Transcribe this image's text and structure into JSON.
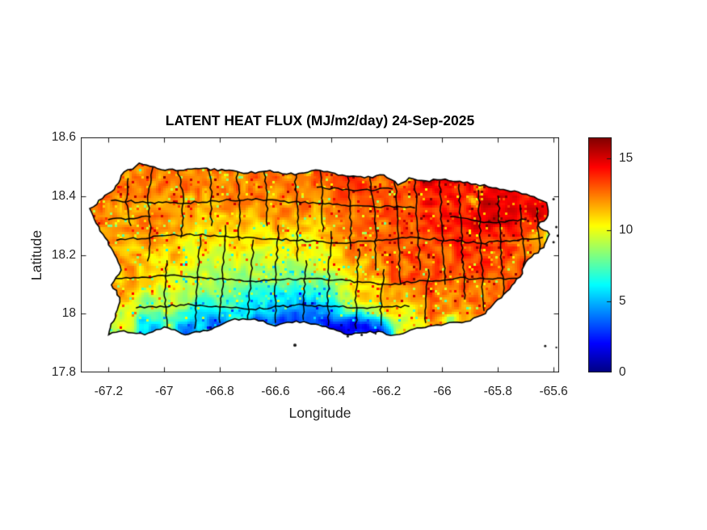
{
  "title": "LATENT HEAT FLUX (MJ/m2/day) 24-Sep-2025",
  "axes": {
    "xlabel": "Longitude",
    "ylabel": "Latitude",
    "xlim": [
      -67.3,
      -65.58
    ],
    "ylim": [
      17.8,
      18.6
    ],
    "xticks": [
      -67.2,
      -67,
      -66.8,
      -66.6,
      -66.4,
      -66.2,
      -66,
      -65.8,
      -65.6
    ],
    "xtick_labels": [
      "-67.2",
      "-67",
      "-66.8",
      "-66.6",
      "-66.4",
      "-66.2",
      "-66",
      "-65.8",
      "-65.6"
    ],
    "yticks": [
      17.8,
      18,
      18.2,
      18.4,
      18.6
    ],
    "ytick_labels": [
      "17.8",
      "18",
      "18.2",
      "18.4",
      "18.6"
    ],
    "axis_color": "#1a1a1a",
    "tick_label_color": "#262626"
  },
  "colorbar": {
    "min": 0,
    "max": 16.5,
    "ticks": [
      0,
      5,
      10,
      15
    ],
    "tick_labels": [
      "0",
      "5",
      "10",
      "15"
    ],
    "colormap": "jet"
  },
  "chart_data": {
    "type": "heatmap",
    "title": "LATENT HEAT FLUX (MJ/m2/day) 24-Sep-2025",
    "variable": "Latent Heat Flux",
    "units": "MJ/m2/day",
    "date": "24-Sep-2025",
    "region": "Puerto Rico",
    "xlabel": "Longitude",
    "ylabel": "Latitude",
    "xlim": [
      -67.3,
      -65.58
    ],
    "ylim": [
      17.8,
      18.6
    ],
    "clim": [
      0,
      16.5
    ],
    "colormap": "jet",
    "legend": "none",
    "grid": false,
    "samples_format": [
      "lon",
      "lat",
      "value_MJ_m2_day",
      "sigma_deg_optional"
    ],
    "samples": [
      [
        -67.13,
        18.43,
        12.0
      ],
      [
        -66.97,
        18.44,
        12.6
      ],
      [
        -66.8,
        18.44,
        12.2
      ],
      [
        -66.63,
        18.43,
        12.6
      ],
      [
        -66.47,
        18.43,
        12.4
      ],
      [
        -66.33,
        18.43,
        13.4
      ],
      [
        -66.18,
        18.42,
        13.0
      ],
      [
        -66.05,
        18.42,
        14.8,
        0.05
      ],
      [
        -65.93,
        18.41,
        14.4
      ],
      [
        -65.8,
        18.4,
        14.8
      ],
      [
        -65.68,
        18.37,
        14.0
      ],
      [
        -65.75,
        18.37,
        15.9,
        0.04
      ],
      [
        -65.72,
        18.34,
        15.2,
        0.06
      ],
      [
        -65.85,
        18.3,
        14.6
      ],
      [
        -66.0,
        18.32,
        14.0
      ],
      [
        -66.13,
        18.3,
        13.2
      ],
      [
        -67.07,
        18.33,
        11.8
      ],
      [
        -66.9,
        18.34,
        11.6
      ],
      [
        -66.73,
        18.33,
        11.4
      ],
      [
        -66.57,
        18.34,
        11.6
      ],
      [
        -66.42,
        18.33,
        11.8
      ],
      [
        -66.28,
        18.31,
        12.4
      ],
      [
        -67.22,
        18.34,
        12.4,
        0.06
      ],
      [
        -67.18,
        18.22,
        12.0,
        0.06
      ],
      [
        -67.18,
        18.08,
        11.6,
        0.06
      ],
      [
        -67.16,
        17.97,
        9.5,
        0.05
      ],
      [
        -67.0,
        18.2,
        11.2
      ],
      [
        -66.85,
        18.2,
        10.2
      ],
      [
        -66.68,
        18.18,
        10.0
      ],
      [
        -66.52,
        18.2,
        10.2
      ],
      [
        -66.44,
        18.24,
        9.8,
        0.05
      ],
      [
        -66.3,
        18.2,
        12.2
      ],
      [
        -66.17,
        18.2,
        12.8
      ],
      [
        -66.03,
        18.17,
        13.2
      ],
      [
        -65.88,
        18.17,
        13.4
      ],
      [
        -65.74,
        18.2,
        13.0
      ],
      [
        -65.66,
        18.26,
        11.0,
        0.04
      ],
      [
        -66.92,
        18.08,
        9.2
      ],
      [
        -66.75,
        18.07,
        8.0
      ],
      [
        -66.58,
        18.08,
        7.2
      ],
      [
        -66.44,
        18.07,
        7.5
      ],
      [
        -66.32,
        18.09,
        10.0
      ],
      [
        -67.0,
        18.0,
        8.5,
        0.06
      ],
      [
        -66.85,
        18.01,
        4.8,
        0.05
      ],
      [
        -66.7,
        18.02,
        5.2,
        0.05
      ],
      [
        -66.6,
        18.04,
        4.0,
        0.04
      ],
      [
        -66.55,
        18.01,
        3.5,
        0.05
      ],
      [
        -66.5,
        18.035,
        3.0,
        0.04
      ],
      [
        -66.42,
        18.0,
        3.0,
        0.05
      ],
      [
        -66.3,
        18.03,
        10.5,
        0.05
      ],
      [
        -66.2,
        18.03,
        11.5,
        0.05
      ],
      [
        -67.05,
        17.955,
        4.5,
        0.04
      ],
      [
        -66.92,
        17.95,
        3.2,
        0.04
      ],
      [
        -66.8,
        17.96,
        2.2,
        0.04
      ],
      [
        -66.66,
        17.965,
        2.0,
        0.04
      ],
      [
        -66.55,
        17.97,
        1.2,
        0.045
      ],
      [
        -66.44,
        17.96,
        1.5,
        0.045
      ],
      [
        -66.34,
        17.95,
        0.8,
        0.05
      ],
      [
        -66.3,
        17.97,
        1.0,
        0.04
      ],
      [
        -66.24,
        17.96,
        2.0,
        0.04
      ],
      [
        -66.08,
        18.08,
        12.6
      ],
      [
        -65.93,
        18.06,
        12.8
      ],
      [
        -65.82,
        18.04,
        12.4
      ],
      [
        -65.98,
        17.99,
        11.0,
        0.05
      ],
      [
        -65.88,
        17.99,
        11.8,
        0.05
      ],
      [
        -66.12,
        17.99,
        9.0,
        0.04
      ],
      [
        -65.97,
        17.985,
        3.5,
        0.015
      ],
      [
        -65.89,
        18.385,
        4.5,
        0.018
      ],
      [
        -66.48,
        18.487,
        4.5,
        0.013
      ],
      [
        -66.12,
        18.468,
        5.0,
        0.012
      ],
      [
        -65.87,
        18.435,
        5.5,
        0.013
      ],
      [
        -65.61,
        18.26,
        5.0,
        0.014
      ],
      [
        -66.05,
        18.43,
        15.9,
        0.03
      ],
      [
        -66.45,
        18.47,
        13.6,
        0.04
      ]
    ],
    "island_outline": [
      [
        -67.155,
        18.47
      ],
      [
        -67.09,
        18.512
      ],
      [
        -67.01,
        18.49
      ],
      [
        -66.93,
        18.488
      ],
      [
        -66.86,
        18.495
      ],
      [
        -66.78,
        18.487
      ],
      [
        -66.7,
        18.478
      ],
      [
        -66.62,
        18.488
      ],
      [
        -66.53,
        18.472
      ],
      [
        -66.44,
        18.488
      ],
      [
        -66.36,
        18.472
      ],
      [
        -66.28,
        18.462
      ],
      [
        -66.21,
        18.472
      ],
      [
        -66.16,
        18.438
      ],
      [
        -66.12,
        18.462
      ],
      [
        -66.06,
        18.452
      ],
      [
        -65.99,
        18.458
      ],
      [
        -65.91,
        18.448
      ],
      [
        -65.82,
        18.428
      ],
      [
        -65.74,
        18.418
      ],
      [
        -65.67,
        18.398
      ],
      [
        -65.625,
        18.378
      ],
      [
        -65.62,
        18.335
      ],
      [
        -65.655,
        18.3
      ],
      [
        -65.615,
        18.27
      ],
      [
        -65.635,
        18.225
      ],
      [
        -65.7,
        18.175
      ],
      [
        -65.72,
        18.125
      ],
      [
        -65.78,
        18.065
      ],
      [
        -65.845,
        18.0
      ],
      [
        -65.9,
        17.975
      ],
      [
        -65.99,
        17.965
      ],
      [
        -66.09,
        17.952
      ],
      [
        -66.17,
        17.928
      ],
      [
        -66.26,
        17.94
      ],
      [
        -66.34,
        17.928
      ],
      [
        -66.445,
        17.962
      ],
      [
        -66.525,
        17.975
      ],
      [
        -66.6,
        17.958
      ],
      [
        -66.675,
        17.982
      ],
      [
        -66.76,
        17.978
      ],
      [
        -66.845,
        17.942
      ],
      [
        -66.925,
        17.928
      ],
      [
        -67.0,
        17.955
      ],
      [
        -67.07,
        17.928
      ],
      [
        -67.145,
        17.942
      ],
      [
        -67.2,
        17.928
      ],
      [
        -67.175,
        18.0
      ],
      [
        -67.16,
        18.055
      ],
      [
        -67.19,
        18.098
      ],
      [
        -67.155,
        18.148
      ],
      [
        -67.178,
        18.2
      ],
      [
        -67.212,
        18.258
      ],
      [
        -67.245,
        18.308
      ],
      [
        -67.268,
        18.358
      ],
      [
        -67.222,
        18.392
      ],
      [
        -67.18,
        18.422
      ]
    ],
    "islets": [
      [
        -65.6,
        18.39,
        1.5
      ],
      [
        -65.575,
        18.365,
        2.0
      ],
      [
        -65.57,
        18.33,
        1.5
      ],
      [
        -65.59,
        18.295,
        1.5
      ],
      [
        -65.585,
        18.265,
        1.5
      ],
      [
        -65.6,
        18.243,
        1.5
      ],
      [
        -66.53,
        17.893,
        2.0
      ],
      [
        -66.34,
        17.923,
        1.5
      ],
      [
        -66.29,
        17.928,
        1.5
      ],
      [
        -66.24,
        17.932,
        1.2
      ],
      [
        -65.63,
        17.89,
        1.5
      ],
      [
        -65.59,
        17.885,
        1.2
      ]
    ],
    "municipal_boundaries": [
      [
        [
          -67.13,
          18.46
        ],
        [
          -67.14,
          18.38
        ],
        [
          -67.12,
          18.3
        ]
      ],
      [
        [
          -67.04,
          18.5
        ],
        [
          -67.06,
          18.4
        ],
        [
          -67.05,
          18.28
        ],
        [
          -67.06,
          18.18
        ]
      ],
      [
        [
          -66.99,
          18.18
        ],
        [
          -67.0,
          18.06
        ],
        [
          -66.99,
          17.94
        ]
      ],
      [
        [
          -66.95,
          18.49
        ],
        [
          -66.93,
          18.38
        ],
        [
          -66.94,
          18.26
        ]
      ],
      [
        [
          -66.87,
          18.26
        ],
        [
          -66.88,
          18.1
        ],
        [
          -66.89,
          17.95
        ]
      ],
      [
        [
          -66.84,
          18.5
        ],
        [
          -66.83,
          18.4
        ],
        [
          -66.83,
          18.3
        ]
      ],
      [
        [
          -66.78,
          18.3
        ],
        [
          -66.79,
          18.12
        ],
        [
          -66.8,
          17.97
        ]
      ],
      [
        [
          -66.74,
          18.49
        ],
        [
          -66.73,
          18.37
        ],
        [
          -66.73,
          18.25
        ]
      ],
      [
        [
          -66.68,
          18.25
        ],
        [
          -66.69,
          18.1
        ],
        [
          -66.7,
          17.98
        ]
      ],
      [
        [
          -66.64,
          18.49
        ],
        [
          -66.63,
          18.4
        ],
        [
          -66.63,
          18.3
        ]
      ],
      [
        [
          -66.59,
          18.3
        ],
        [
          -66.6,
          18.12
        ],
        [
          -66.6,
          17.97
        ]
      ],
      [
        [
          -66.53,
          18.49
        ],
        [
          -66.52,
          18.34
        ],
        [
          -66.52,
          18.18
        ]
      ],
      [
        [
          -66.49,
          18.18
        ],
        [
          -66.5,
          18.06
        ],
        [
          -66.5,
          17.98
        ]
      ],
      [
        [
          -66.44,
          18.49
        ],
        [
          -66.43,
          18.38
        ],
        [
          -66.43,
          18.28
        ]
      ],
      [
        [
          -66.4,
          18.28
        ],
        [
          -66.41,
          18.1
        ],
        [
          -66.41,
          17.96
        ]
      ],
      [
        [
          -66.34,
          18.48
        ],
        [
          -66.33,
          18.34
        ],
        [
          -66.33,
          18.22
        ]
      ],
      [
        [
          -66.3,
          18.22
        ],
        [
          -66.31,
          18.06
        ],
        [
          -66.31,
          17.95
        ]
      ],
      [
        [
          -66.26,
          18.47
        ],
        [
          -66.24,
          18.3
        ],
        [
          -66.24,
          18.15
        ]
      ],
      [
        [
          -66.21,
          18.15
        ],
        [
          -66.22,
          18.04
        ],
        [
          -66.22,
          17.96
        ]
      ],
      [
        [
          -66.17,
          18.47
        ],
        [
          -66.16,
          18.28
        ],
        [
          -66.15,
          18.1
        ]
      ],
      [
        [
          -66.1,
          18.46
        ],
        [
          -66.09,
          18.3
        ],
        [
          -66.08,
          18.15
        ]
      ],
      [
        [
          -66.05,
          18.15
        ],
        [
          -66.06,
          18.05
        ],
        [
          -66.06,
          17.97
        ]
      ],
      [
        [
          -66.01,
          18.45
        ],
        [
          -66.0,
          18.28
        ],
        [
          -65.99,
          18.1
        ]
      ],
      [
        [
          -65.94,
          18.44
        ],
        [
          -65.93,
          18.25
        ],
        [
          -65.92,
          18.05
        ]
      ],
      [
        [
          -65.87,
          18.42
        ],
        [
          -65.86,
          18.2
        ],
        [
          -65.85,
          18.01
        ]
      ],
      [
        [
          -65.8,
          18.4
        ],
        [
          -65.79,
          18.22
        ],
        [
          -65.78,
          18.06
        ]
      ],
      [
        [
          -65.72,
          18.37
        ],
        [
          -65.71,
          18.24
        ],
        [
          -65.7,
          18.11
        ]
      ],
      [
        [
          -65.66,
          18.36
        ],
        [
          -65.655,
          18.28
        ],
        [
          -65.65,
          18.22
        ]
      ],
      [
        [
          -67.19,
          18.385
        ],
        [
          -66.95,
          18.375
        ],
        [
          -66.7,
          18.39
        ],
        [
          -66.45,
          18.375
        ],
        [
          -66.25,
          18.365
        ],
        [
          -66.1,
          18.36
        ]
      ],
      [
        [
          -67.17,
          18.25
        ],
        [
          -66.92,
          18.27
        ],
        [
          -66.62,
          18.255
        ],
        [
          -66.36,
          18.24
        ],
        [
          -66.1,
          18.26
        ],
        [
          -65.86,
          18.24
        ],
        [
          -65.64,
          18.26
        ]
      ],
      [
        [
          -67.18,
          18.12
        ],
        [
          -66.95,
          18.13
        ],
        [
          -66.7,
          18.11
        ],
        [
          -66.45,
          18.12
        ],
        [
          -66.2,
          18.1
        ],
        [
          -65.95,
          18.12
        ],
        [
          -65.73,
          18.12
        ]
      ],
      [
        [
          -67.1,
          18.02
        ],
        [
          -66.9,
          18.03
        ],
        [
          -66.7,
          18.015
        ],
        [
          -66.5,
          18.03
        ],
        [
          -66.3,
          18.02
        ],
        [
          -66.12,
          18.025
        ]
      ],
      [
        [
          -66.45,
          18.43
        ],
        [
          -66.3,
          18.42
        ],
        [
          -66.18,
          18.425
        ]
      ],
      [
        [
          -65.97,
          18.33
        ],
        [
          -65.82,
          18.31
        ],
        [
          -65.7,
          18.32
        ]
      ],
      [
        [
          -67.2,
          18.32
        ],
        [
          -67.05,
          18.33
        ]
      ]
    ]
  }
}
